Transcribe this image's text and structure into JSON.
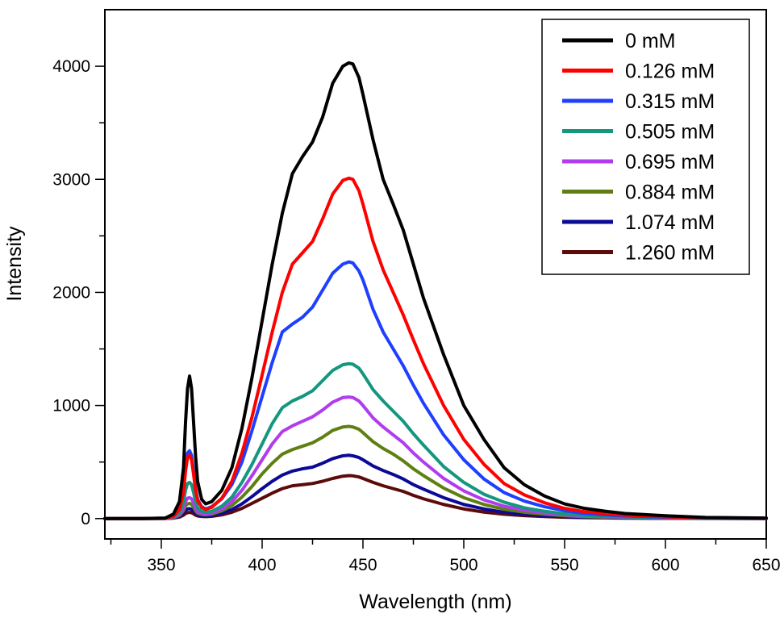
{
  "chart_data": {
    "type": "line",
    "title": "",
    "xlabel": "Wavelength (nm)",
    "ylabel": "Intensity",
    "xlim": [
      322,
      650
    ],
    "ylim": [
      -180,
      4500
    ],
    "x_ticks": [
      350,
      400,
      450,
      500,
      550,
      600,
      650
    ],
    "x_minor_ticks": [
      325,
      375,
      425,
      475,
      525,
      575,
      625
    ],
    "y_ticks": [
      0,
      1000,
      2000,
      3000,
      4000
    ],
    "y_minor_ticks": [
      500,
      1500,
      2500,
      3500
    ],
    "x_tick_labels": [
      "350",
      "400",
      "450",
      "500",
      "550",
      "600",
      "650"
    ],
    "y_tick_labels": [
      "0",
      "1000",
      "2000",
      "3000",
      "4000"
    ],
    "grid": false,
    "legend_position": "top-right",
    "x": [
      322,
      340,
      352,
      356,
      359,
      361,
      362,
      363,
      364,
      365,
      366,
      367,
      368,
      370,
      372,
      375,
      380,
      385,
      390,
      395,
      400,
      405,
      410,
      415,
      420,
      425,
      430,
      435,
      440,
      443,
      445,
      448,
      450,
      455,
      460,
      465,
      470,
      475,
      480,
      490,
      500,
      510,
      520,
      530,
      540,
      550,
      560,
      570,
      580,
      600,
      620,
      650
    ],
    "series": [
      {
        "name": "0 mM",
        "color": "#000000",
        "values": [
          0,
          0,
          5,
          40,
          150,
          450,
          850,
          1150,
          1260,
          1150,
          850,
          550,
          330,
          170,
          130,
          150,
          250,
          450,
          800,
          1250,
          1750,
          2250,
          2700,
          3050,
          3200,
          3330,
          3550,
          3850,
          4000,
          4030,
          4020,
          3900,
          3750,
          3350,
          3000,
          2780,
          2550,
          2250,
          1950,
          1450,
          1000,
          700,
          450,
          300,
          200,
          130,
          90,
          65,
          45,
          25,
          10,
          5
        ]
      },
      {
        "name": "0.126 mM",
        "color": "#ff0000",
        "values": [
          0,
          0,
          3,
          20,
          80,
          230,
          420,
          540,
          560,
          520,
          390,
          250,
          160,
          100,
          80,
          100,
          180,
          330,
          580,
          900,
          1270,
          1650,
          2000,
          2250,
          2350,
          2450,
          2650,
          2870,
          2990,
          3010,
          3000,
          2900,
          2780,
          2450,
          2200,
          2000,
          1800,
          1580,
          1370,
          1000,
          700,
          480,
          310,
          210,
          140,
          90,
          60,
          45,
          30,
          15,
          8,
          3
        ]
      },
      {
        "name": "0.315 mM",
        "color": "#1f3fff",
        "values": [
          0,
          0,
          4,
          30,
          100,
          280,
          480,
          580,
          600,
          560,
          420,
          270,
          170,
          105,
          85,
          105,
          175,
          300,
          500,
          780,
          1080,
          1380,
          1650,
          1720,
          1780,
          1870,
          2020,
          2170,
          2250,
          2270,
          2260,
          2190,
          2110,
          1850,
          1650,
          1500,
          1350,
          1180,
          1020,
          740,
          520,
          350,
          230,
          155,
          105,
          70,
          45,
          33,
          24,
          12,
          6,
          2
        ]
      },
      {
        "name": "0.505 mM",
        "color": "#14967f",
        "values": [
          0,
          0,
          3,
          15,
          50,
          140,
          250,
          310,
          320,
          300,
          230,
          150,
          95,
          65,
          55,
          65,
          110,
          190,
          320,
          480,
          660,
          840,
          980,
          1040,
          1080,
          1130,
          1220,
          1310,
          1360,
          1370,
          1365,
          1330,
          1280,
          1140,
          1040,
          950,
          860,
          750,
          650,
          460,
          320,
          215,
          145,
          95,
          65,
          42,
          28,
          20,
          15,
          8,
          4,
          1
        ]
      },
      {
        "name": "0.695 mM",
        "color": "#b13cee",
        "values": [
          0,
          0,
          2,
          10,
          35,
          90,
          150,
          180,
          185,
          175,
          135,
          90,
          60,
          45,
          40,
          48,
          85,
          150,
          250,
          380,
          520,
          660,
          770,
          820,
          860,
          900,
          960,
          1030,
          1070,
          1075,
          1070,
          1040,
          1000,
          890,
          810,
          740,
          670,
          580,
          500,
          355,
          245,
          165,
          110,
          75,
          50,
          33,
          22,
          16,
          12,
          6,
          3,
          1
        ]
      },
      {
        "name": "0.884 mM",
        "color": "#5f7f12",
        "values": [
          0,
          0,
          2,
          8,
          28,
          70,
          110,
          130,
          135,
          125,
          100,
          68,
          48,
          37,
          33,
          40,
          68,
          115,
          190,
          285,
          395,
          490,
          570,
          610,
          640,
          670,
          720,
          780,
          810,
          815,
          810,
          790,
          760,
          680,
          620,
          570,
          510,
          440,
          380,
          270,
          185,
          125,
          83,
          56,
          38,
          25,
          17,
          12,
          9,
          5,
          2,
          1
        ]
      },
      {
        "name": "1.074 mM",
        "color": "#0a0a96",
        "values": [
          0,
          0,
          1,
          6,
          20,
          48,
          72,
          85,
          88,
          82,
          65,
          45,
          33,
          27,
          24,
          28,
          47,
          80,
          130,
          195,
          265,
          330,
          385,
          420,
          440,
          455,
          490,
          530,
          555,
          560,
          555,
          540,
          520,
          465,
          425,
          390,
          350,
          300,
          260,
          185,
          125,
          85,
          56,
          38,
          26,
          17,
          12,
          9,
          6,
          3,
          1,
          0
        ]
      },
      {
        "name": "1.260 mM",
        "color": "#5c0a0a",
        "values": [
          0,
          0,
          1,
          4,
          13,
          30,
          45,
          52,
          55,
          52,
          42,
          30,
          23,
          19,
          17,
          20,
          33,
          56,
          90,
          135,
          180,
          225,
          265,
          290,
          300,
          310,
          330,
          355,
          375,
          380,
          378,
          368,
          355,
          320,
          290,
          265,
          240,
          205,
          175,
          125,
          85,
          57,
          38,
          26,
          18,
          12,
          8,
          6,
          4,
          2,
          1,
          0
        ]
      }
    ]
  }
}
